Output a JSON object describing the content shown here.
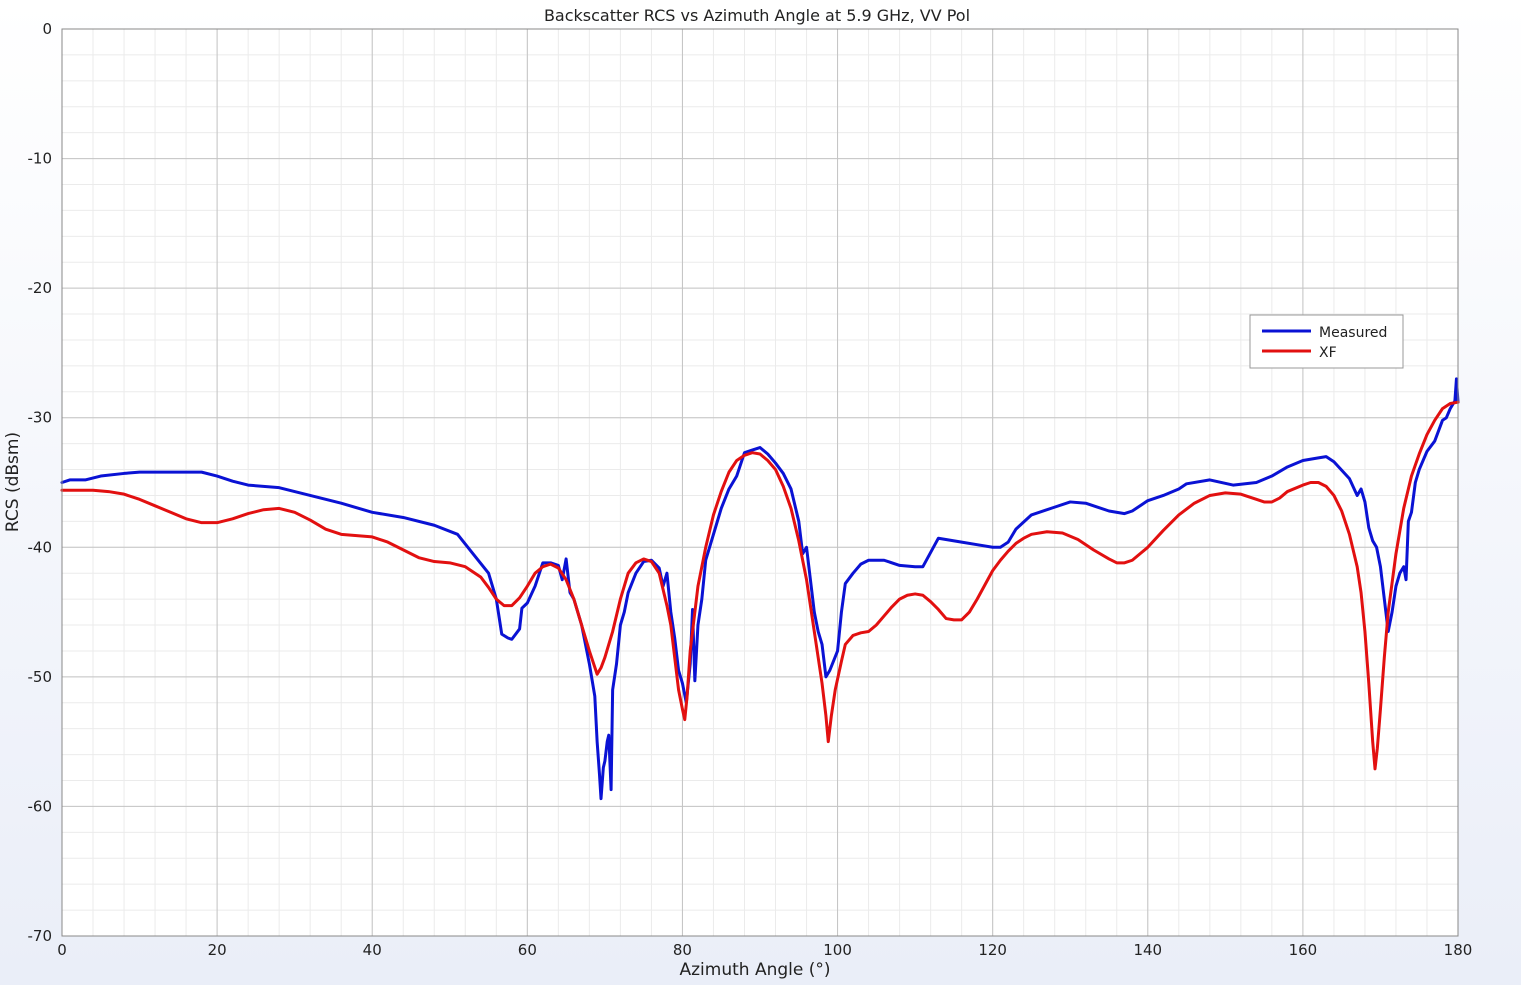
{
  "chart_data": {
    "type": "line",
    "title": "Backscatter RCS vs Azimuth Angle at 5.9 GHz, VV Pol",
    "xlabel": "Azimuth Angle (°)",
    "ylabel": "RCS (dBsm)",
    "xlim": [
      0,
      180
    ],
    "ylim": [
      -70,
      0
    ],
    "x_ticks": [
      0,
      20,
      40,
      60,
      80,
      100,
      120,
      140,
      160,
      180
    ],
    "y_ticks": [
      0,
      -10,
      -20,
      -30,
      -40,
      -50,
      -60,
      -70
    ],
    "x_tick_labels": [
      "0",
      "20",
      "40",
      "60",
      "80",
      "100",
      "120",
      "140",
      "160",
      "180"
    ],
    "y_tick_labels": [
      "0",
      "-10",
      "-20",
      "-30",
      "-40",
      "-50",
      "-60",
      "-70"
    ],
    "grid": true,
    "minor_grid": true,
    "legend_position": "upper-right",
    "series": [
      {
        "name": "Measured",
        "color": "#0a12d4",
        "points": [
          [
            0,
            -35.0
          ],
          [
            1,
            -34.8
          ],
          [
            3,
            -34.8
          ],
          [
            5,
            -34.5
          ],
          [
            8,
            -34.3
          ],
          [
            10,
            -34.2
          ],
          [
            14,
            -34.2
          ],
          [
            18,
            -34.2
          ],
          [
            20,
            -34.5
          ],
          [
            22,
            -34.9
          ],
          [
            24,
            -35.2
          ],
          [
            28,
            -35.4
          ],
          [
            32,
            -36.0
          ],
          [
            36,
            -36.6
          ],
          [
            40,
            -37.3
          ],
          [
            44,
            -37.7
          ],
          [
            48,
            -38.3
          ],
          [
            51,
            -39.0
          ],
          [
            53,
            -40.5
          ],
          [
            55,
            -42.0
          ],
          [
            56,
            -44.0
          ],
          [
            56.7,
            -46.7
          ],
          [
            57.5,
            -47.0
          ],
          [
            58,
            -47.1
          ],
          [
            59,
            -46.3
          ],
          [
            59.3,
            -44.7
          ],
          [
            60,
            -44.3
          ],
          [
            61,
            -43.0
          ],
          [
            62,
            -41.2
          ],
          [
            63,
            -41.2
          ],
          [
            64,
            -41.4
          ],
          [
            64.5,
            -42.5
          ],
          [
            65,
            -40.9
          ],
          [
            65.5,
            -43.5
          ],
          [
            66,
            -44.0
          ],
          [
            67,
            -46.0
          ],
          [
            68,
            -49.0
          ],
          [
            68.7,
            -51.5
          ],
          [
            69,
            -55.0
          ],
          [
            69.3,
            -57.5
          ],
          [
            69.5,
            -59.4
          ],
          [
            69.8,
            -57.0
          ],
          [
            70,
            -56.5
          ],
          [
            70.3,
            -55.0
          ],
          [
            70.5,
            -54.5
          ],
          [
            70.8,
            -58.7
          ],
          [
            71,
            -51.0
          ],
          [
            71.5,
            -49.0
          ],
          [
            72,
            -46.0
          ],
          [
            72.5,
            -45.0
          ],
          [
            73,
            -43.5
          ],
          [
            74,
            -42.0
          ],
          [
            75,
            -41.1
          ],
          [
            76,
            -41.0
          ],
          [
            77,
            -41.6
          ],
          [
            77.5,
            -43.0
          ],
          [
            78,
            -42.0
          ],
          [
            78.5,
            -45.0
          ],
          [
            79,
            -47.0
          ],
          [
            79.5,
            -49.5
          ],
          [
            80,
            -50.5
          ],
          [
            80.5,
            -52.0
          ],
          [
            81,
            -49.0
          ],
          [
            81.3,
            -44.8
          ],
          [
            81.6,
            -50.3
          ],
          [
            82,
            -46.0
          ],
          [
            82.5,
            -44.0
          ],
          [
            83,
            -41.0
          ],
          [
            84,
            -39.0
          ],
          [
            85,
            -37.0
          ],
          [
            86,
            -35.5
          ],
          [
            87,
            -34.5
          ],
          [
            88,
            -32.7
          ],
          [
            89,
            -32.5
          ],
          [
            90,
            -32.3
          ],
          [
            91,
            -32.8
          ],
          [
            92,
            -33.5
          ],
          [
            93,
            -34.3
          ],
          [
            94,
            -35.5
          ],
          [
            95,
            -38.0
          ],
          [
            95.5,
            -40.5
          ],
          [
            96,
            -40.0
          ],
          [
            96.5,
            -42.5
          ],
          [
            97,
            -45.0
          ],
          [
            97.5,
            -46.5
          ],
          [
            98,
            -47.5
          ],
          [
            98.5,
            -50.0
          ],
          [
            99,
            -49.5
          ],
          [
            100,
            -48.0
          ],
          [
            100.5,
            -45.0
          ],
          [
            101,
            -42.8
          ],
          [
            102,
            -42.0
          ],
          [
            103,
            -41.3
          ],
          [
            104,
            -41.0
          ],
          [
            106,
            -41.0
          ],
          [
            108,
            -41.4
          ],
          [
            110,
            -41.5
          ],
          [
            111,
            -41.5
          ],
          [
            113,
            -39.3
          ],
          [
            116,
            -39.6
          ],
          [
            118,
            -39.8
          ],
          [
            120,
            -40.0
          ],
          [
            121,
            -40.0
          ],
          [
            122,
            -39.6
          ],
          [
            123,
            -38.6
          ],
          [
            125,
            -37.5
          ],
          [
            128,
            -36.9
          ],
          [
            130,
            -36.5
          ],
          [
            132,
            -36.6
          ],
          [
            135,
            -37.2
          ],
          [
            137,
            -37.4
          ],
          [
            138,
            -37.2
          ],
          [
            140,
            -36.4
          ],
          [
            142,
            -36.0
          ],
          [
            144,
            -35.5
          ],
          [
            145,
            -35.1
          ],
          [
            148,
            -34.8
          ],
          [
            151,
            -35.2
          ],
          [
            154,
            -35.0
          ],
          [
            156,
            -34.5
          ],
          [
            158,
            -33.8
          ],
          [
            160,
            -33.3
          ],
          [
            162,
            -33.1
          ],
          [
            163,
            -33.0
          ],
          [
            164,
            -33.4
          ],
          [
            166,
            -34.7
          ],
          [
            167,
            -36.0
          ],
          [
            167.5,
            -35.5
          ],
          [
            168,
            -36.5
          ],
          [
            168.5,
            -38.5
          ],
          [
            169,
            -39.5
          ],
          [
            169.5,
            -40.0
          ],
          [
            170,
            -41.5
          ],
          [
            170.5,
            -44.0
          ],
          [
            171,
            -46.5
          ],
          [
            171.5,
            -45.0
          ],
          [
            172,
            -43.0
          ],
          [
            172.5,
            -42.0
          ],
          [
            173,
            -41.5
          ],
          [
            173.3,
            -42.5
          ],
          [
            173.6,
            -38.0
          ],
          [
            174,
            -37.3
          ],
          [
            174.5,
            -35.0
          ],
          [
            175,
            -34.0
          ],
          [
            176,
            -32.6
          ],
          [
            177,
            -31.8
          ],
          [
            177.5,
            -31.0
          ],
          [
            178,
            -30.2
          ],
          [
            178.5,
            -30.0
          ],
          [
            179,
            -29.3
          ],
          [
            179.6,
            -28.7
          ],
          [
            179.8,
            -27.0
          ],
          [
            180,
            -28.8
          ]
        ]
      },
      {
        "name": "XF",
        "color": "#e21010",
        "points": [
          [
            0,
            -35.6
          ],
          [
            2,
            -35.6
          ],
          [
            4,
            -35.6
          ],
          [
            6,
            -35.7
          ],
          [
            8,
            -35.9
          ],
          [
            10,
            -36.3
          ],
          [
            12,
            -36.8
          ],
          [
            14,
            -37.3
          ],
          [
            16,
            -37.8
          ],
          [
            18,
            -38.1
          ],
          [
            20,
            -38.1
          ],
          [
            22,
            -37.8
          ],
          [
            24,
            -37.4
          ],
          [
            26,
            -37.1
          ],
          [
            28,
            -37.0
          ],
          [
            30,
            -37.3
          ],
          [
            32,
            -37.9
          ],
          [
            34,
            -38.6
          ],
          [
            36,
            -39.0
          ],
          [
            38,
            -39.1
          ],
          [
            40,
            -39.2
          ],
          [
            42,
            -39.6
          ],
          [
            44,
            -40.2
          ],
          [
            46,
            -40.8
          ],
          [
            48,
            -41.1
          ],
          [
            50,
            -41.2
          ],
          [
            52,
            -41.5
          ],
          [
            54,
            -42.3
          ],
          [
            55,
            -43.1
          ],
          [
            56,
            -44.0
          ],
          [
            57,
            -44.5
          ],
          [
            58,
            -44.5
          ],
          [
            59,
            -43.9
          ],
          [
            60,
            -43.0
          ],
          [
            61,
            -42.0
          ],
          [
            62,
            -41.5
          ],
          [
            63,
            -41.3
          ],
          [
            64,
            -41.6
          ],
          [
            65,
            -42.5
          ],
          [
            66,
            -44.0
          ],
          [
            67,
            -46.0
          ],
          [
            68,
            -48.0
          ],
          [
            69,
            -49.8
          ],
          [
            69.5,
            -49.3
          ],
          [
            70,
            -48.5
          ],
          [
            71,
            -46.5
          ],
          [
            72,
            -44.0
          ],
          [
            73,
            -42.0
          ],
          [
            74,
            -41.2
          ],
          [
            75,
            -40.9
          ],
          [
            76,
            -41.1
          ],
          [
            77,
            -42.0
          ],
          [
            78,
            -44.5
          ],
          [
            78.5,
            -46.0
          ],
          [
            79,
            -48.5
          ],
          [
            79.5,
            -51.0
          ],
          [
            80,
            -52.5
          ],
          [
            80.3,
            -53.3
          ],
          [
            80.6,
            -51.5
          ],
          [
            81,
            -48.0
          ],
          [
            82,
            -43.0
          ],
          [
            83,
            -40.0
          ],
          [
            84,
            -37.5
          ],
          [
            85,
            -35.7
          ],
          [
            86,
            -34.2
          ],
          [
            87,
            -33.3
          ],
          [
            88,
            -32.9
          ],
          [
            89,
            -32.7
          ],
          [
            90,
            -32.8
          ],
          [
            91,
            -33.3
          ],
          [
            92,
            -34.0
          ],
          [
            93,
            -35.3
          ],
          [
            94,
            -37.0
          ],
          [
            95,
            -39.5
          ],
          [
            96,
            -42.5
          ],
          [
            97,
            -46.5
          ],
          [
            98,
            -50.5
          ],
          [
            98.5,
            -53.0
          ],
          [
            98.8,
            -55.0
          ],
          [
            99.2,
            -53.0
          ],
          [
            99.7,
            -51.0
          ],
          [
            100.5,
            -48.8
          ],
          [
            101,
            -47.5
          ],
          [
            102,
            -46.8
          ],
          [
            103,
            -46.6
          ],
          [
            104,
            -46.5
          ],
          [
            105,
            -46.0
          ],
          [
            106,
            -45.3
          ],
          [
            107,
            -44.6
          ],
          [
            108,
            -44.0
          ],
          [
            109,
            -43.7
          ],
          [
            110,
            -43.6
          ],
          [
            111,
            -43.7
          ],
          [
            112,
            -44.2
          ],
          [
            113,
            -44.8
          ],
          [
            114,
            -45.5
          ],
          [
            115,
            -45.6
          ],
          [
            116,
            -45.6
          ],
          [
            117,
            -45.0
          ],
          [
            118,
            -44.0
          ],
          [
            119,
            -42.9
          ],
          [
            120,
            -41.8
          ],
          [
            121,
            -41.0
          ],
          [
            122,
            -40.3
          ],
          [
            123,
            -39.7
          ],
          [
            124,
            -39.3
          ],
          [
            125,
            -39.0
          ],
          [
            127,
            -38.8
          ],
          [
            129,
            -38.9
          ],
          [
            131,
            -39.4
          ],
          [
            133,
            -40.2
          ],
          [
            135,
            -40.9
          ],
          [
            136,
            -41.2
          ],
          [
            137,
            -41.2
          ],
          [
            138,
            -41.0
          ],
          [
            140,
            -40.0
          ],
          [
            142,
            -38.7
          ],
          [
            144,
            -37.5
          ],
          [
            146,
            -36.6
          ],
          [
            148,
            -36.0
          ],
          [
            150,
            -35.8
          ],
          [
            152,
            -35.9
          ],
          [
            154,
            -36.3
          ],
          [
            155,
            -36.5
          ],
          [
            156,
            -36.5
          ],
          [
            157,
            -36.2
          ],
          [
            158,
            -35.7
          ],
          [
            160,
            -35.2
          ],
          [
            161,
            -35.0
          ],
          [
            162,
            -35.0
          ],
          [
            163,
            -35.3
          ],
          [
            164,
            -36.0
          ],
          [
            165,
            -37.2
          ],
          [
            166,
            -39.0
          ],
          [
            167,
            -41.5
          ],
          [
            167.5,
            -43.5
          ],
          [
            168,
            -46.5
          ],
          [
            168.5,
            -50.5
          ],
          [
            169,
            -55.0
          ],
          [
            169.3,
            -57.1
          ],
          [
            169.6,
            -55.5
          ],
          [
            170,
            -52.5
          ],
          [
            170.5,
            -48.5
          ],
          [
            171,
            -45.0
          ],
          [
            172,
            -40.5
          ],
          [
            173,
            -37.0
          ],
          [
            174,
            -34.5
          ],
          [
            175,
            -32.8
          ],
          [
            176,
            -31.3
          ],
          [
            177,
            -30.2
          ],
          [
            178,
            -29.3
          ],
          [
            179,
            -28.9
          ],
          [
            180,
            -28.8
          ]
        ]
      }
    ]
  }
}
